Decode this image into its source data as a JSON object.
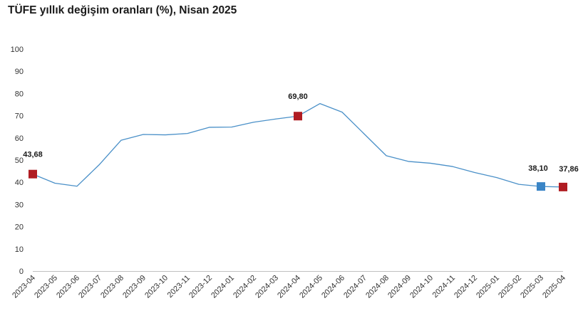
{
  "chart_data": {
    "type": "line",
    "title": "TÜFE yıllık değişim oranları (%), Nisan 2025",
    "xlabel": "",
    "ylabel": "",
    "ylim": [
      0,
      100
    ],
    "yticks": [
      0,
      10,
      20,
      30,
      40,
      50,
      60,
      70,
      80,
      90,
      100
    ],
    "grid": false,
    "legend": "none",
    "line_color": "#4a90c8",
    "categories": [
      "2023-04",
      "2023-05",
      "2023-06",
      "2023-07",
      "2023-08",
      "2023-09",
      "2023-10",
      "2023-11",
      "2023-12",
      "2024-01",
      "2024-02",
      "2024-03",
      "2024-04",
      "2024-05",
      "2024-06",
      "2024-07",
      "2024-08",
      "2024-09",
      "2024-10",
      "2024-11",
      "2024-12",
      "2025-01",
      "2025-02",
      "2025-03",
      "2025-04"
    ],
    "series": [
      {
        "values": [
          43.68,
          39.59,
          38.21,
          47.83,
          58.94,
          61.53,
          61.36,
          61.98,
          64.77,
          64.86,
          67.07,
          68.5,
          69.8,
          75.45,
          71.6,
          61.78,
          51.97,
          49.38,
          48.58,
          47.09,
          44.38,
          42.12,
          39.05,
          38.1,
          37.86
        ]
      }
    ],
    "highlighted_points": [
      {
        "category": "2023-04",
        "value": 43.68,
        "label": "43,68",
        "color": "#b01c22"
      },
      {
        "category": "2024-04",
        "value": 69.8,
        "label": "69,80",
        "color": "#b01c22"
      },
      {
        "category": "2025-03",
        "value": 38.1,
        "label": "38,10",
        "color": "#3a85c6"
      },
      {
        "category": "2025-04",
        "value": 37.86,
        "label": "37,86",
        "color": "#b01c22"
      }
    ]
  }
}
